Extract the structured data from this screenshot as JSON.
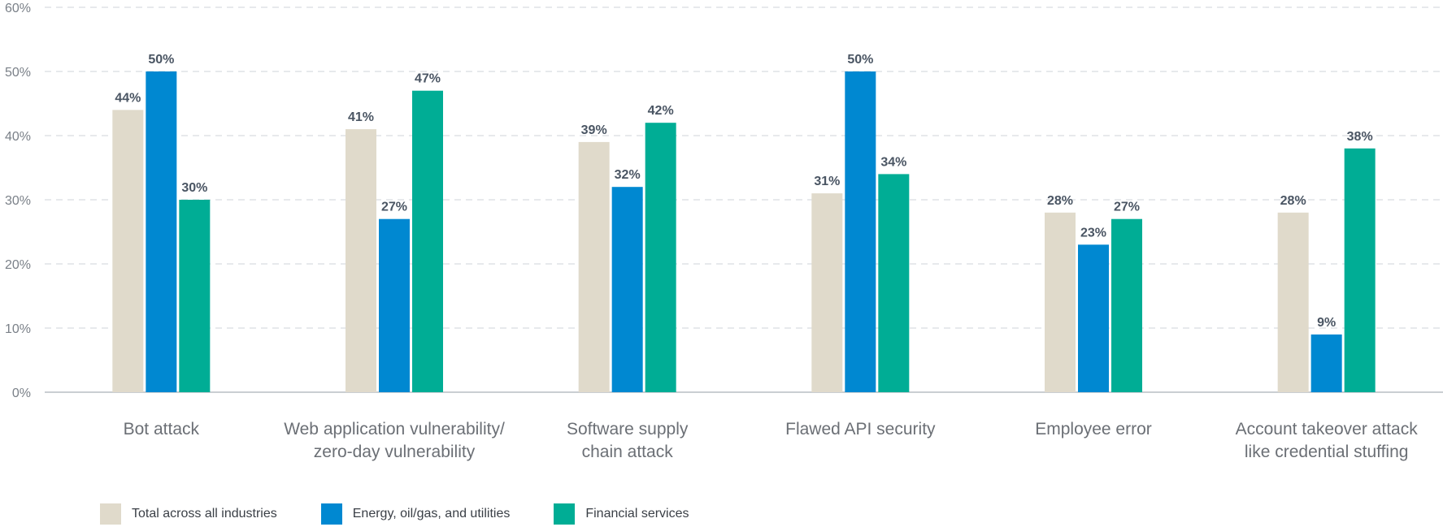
{
  "chart_data": {
    "type": "bar",
    "categories": [
      [
        "Bot attack"
      ],
      [
        "Web application vulnerability/",
        "zero-day vulnerability"
      ],
      [
        "Software supply",
        "chain attack"
      ],
      [
        "Flawed API security"
      ],
      [
        "Employee error"
      ],
      [
        "Account takeover attack",
        "like credential stuffing"
      ]
    ],
    "series": [
      {
        "name": "Total across all industries",
        "color": "#e0dacb",
        "values": [
          44,
          41,
          39,
          31,
          28,
          28
        ]
      },
      {
        "name": "Energy, oil/gas, and utilities",
        "color": "#0088d1",
        "values": [
          50,
          27,
          32,
          50,
          23,
          9
        ]
      },
      {
        "name": "Financial services",
        "color": "#00ad95",
        "values": [
          30,
          47,
          42,
          34,
          27,
          38
        ]
      }
    ],
    "ylim": [
      0,
      60
    ],
    "yticks": [
      "0%",
      "10%",
      "20%",
      "30%",
      "40%",
      "50%",
      "60%"
    ],
    "value_suffix": "%",
    "grid": true,
    "legend": "bottom-left"
  }
}
